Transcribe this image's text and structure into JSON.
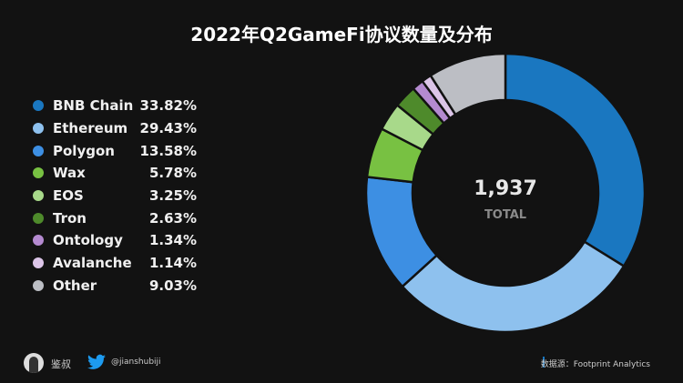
{
  "chart_data": {
    "type": "pie",
    "donut": true,
    "title": "2022年Q2GameFi协议数量及分布",
    "center_value": "1,937",
    "center_label": "TOTAL",
    "legend_position": "left",
    "slices": [
      {
        "name": "BNB Chain",
        "value": 33.82,
        "label": "33.82%",
        "color": "#1a77c0"
      },
      {
        "name": "Ethereum",
        "value": 29.43,
        "label": "29.43%",
        "color": "#8ec1ee"
      },
      {
        "name": "Polygon",
        "value": 13.58,
        "label": "13.58%",
        "color": "#3d8fe3"
      },
      {
        "name": "Wax",
        "value": 5.78,
        "label": "5.78%",
        "color": "#78c142"
      },
      {
        "name": "EOS",
        "value": 3.25,
        "label": "3.25%",
        "color": "#a8d98a"
      },
      {
        "name": "Tron",
        "value": 2.63,
        "label": "2.63%",
        "color": "#4e8a2b"
      },
      {
        "name": "Ontology",
        "value": 1.34,
        "label": "1.34%",
        "color": "#b48ad0"
      },
      {
        "name": "Avalanche",
        "value": 1.14,
        "label": "1.14%",
        "color": "#dcc5e8"
      },
      {
        "name": "Other",
        "value": 9.03,
        "label": "9.03%",
        "color": "#bcbec4"
      }
    ]
  },
  "footer": {
    "author": "鉴叔",
    "twitter_handle": "@jianshubiji",
    "source": "数据源：Footprint  Analytics",
    "icons": [
      "avatar",
      "twitter-icon"
    ]
  }
}
